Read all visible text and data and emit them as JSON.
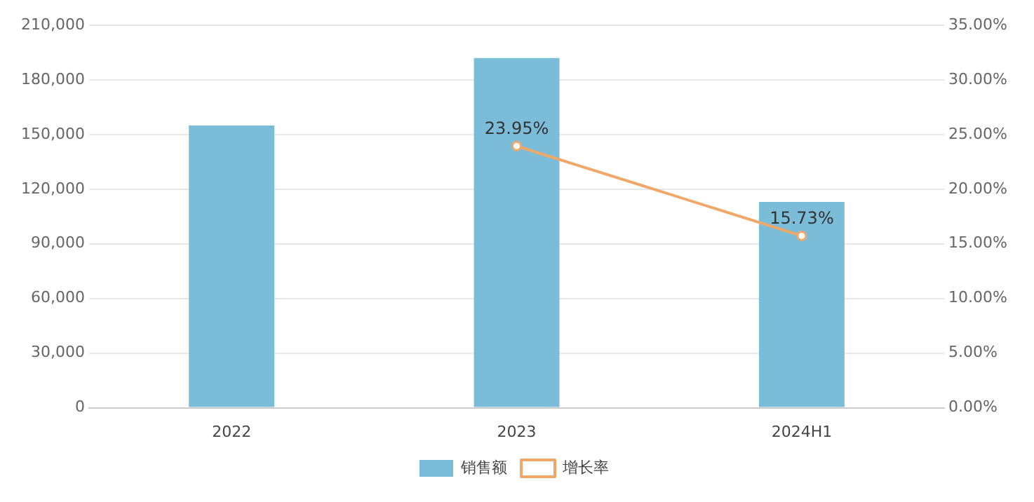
{
  "chart_data": {
    "type": "bar",
    "categories": [
      "2022",
      "2023",
      "2024H1"
    ],
    "series": [
      {
        "name": "销售额",
        "color": "#7bbcd9",
        "values": [
          155000,
          192000,
          113000
        ]
      },
      {
        "name": "增长率",
        "type": "line",
        "axis": "y2",
        "color": "#f0a868",
        "marker": "circle",
        "values": [
          null,
          23.95,
          15.73
        ],
        "value_labels": [
          null,
          "23.95%",
          "15.73%"
        ]
      }
    ],
    "ylim": [
      0,
      210000
    ],
    "yticks": [
      0,
      {
        "value": 30000,
        "label": "30,000"
      },
      {
        "value": 60000,
        "label": "60,000"
      },
      {
        "value": 90000,
        "label": "90,000"
      },
      {
        "value": 120000,
        "label": "120,000"
      },
      {
        "value": 150000,
        "label": "150,000"
      },
      {
        "value": 180000,
        "label": "180,000"
      },
      {
        "value": 210000,
        "label": "210,000"
      }
    ],
    "y2lim": [
      0,
      35
    ],
    "y2ticks": [
      {
        "value": 0,
        "label": "0.00%"
      },
      {
        "value": 5,
        "label": "5.00%"
      },
      {
        "value": 10,
        "label": "10.00%"
      },
      {
        "value": 15,
        "label": "15.00%"
      },
      {
        "value": 20,
        "label": "20.00%"
      },
      {
        "value": 25,
        "label": "25.00%"
      },
      {
        "value": 30,
        "label": "30.00%"
      },
      {
        "value": 35,
        "label": "35.00%"
      }
    ],
    "grid": "y",
    "legend": "bottom"
  }
}
